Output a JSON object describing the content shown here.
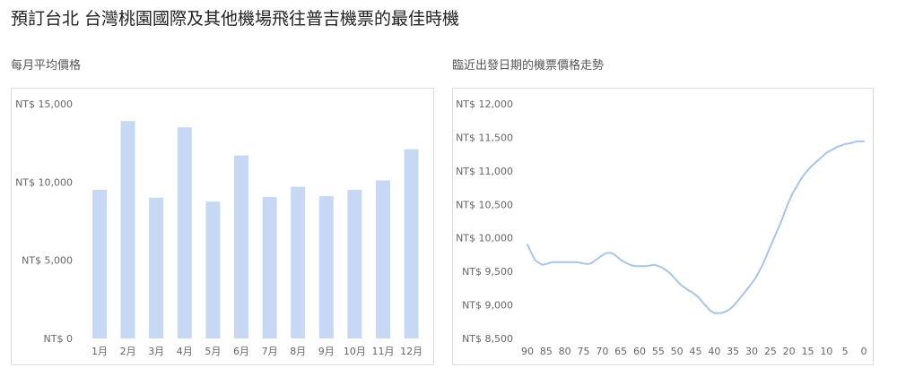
{
  "page": {
    "title": "預訂台北 台灣桃園國際及其他機場飛往普吉機票的最佳時機"
  },
  "colors": {
    "bar": "#c6d8f3",
    "line": "#a9c4ea",
    "border": "#dcdcdc"
  },
  "chart_data": [
    {
      "type": "bar",
      "title": "每月平均價格",
      "categories": [
        "1月",
        "2月",
        "3月",
        "4月",
        "5月",
        "6月",
        "7月",
        "8月",
        "9月",
        "10月",
        "11月",
        "12月"
      ],
      "values": [
        9500,
        13900,
        9000,
        13500,
        8750,
        11700,
        9050,
        9700,
        9100,
        9500,
        10100,
        12100
      ],
      "ylim": [
        0,
        15000
      ],
      "yticks": [
        0,
        5000,
        10000,
        15000
      ],
      "ytick_labels": [
        "NT$ 0",
        "NT$ 5,000",
        "NT$ 10,000",
        "NT$ 15,000"
      ],
      "grid": false,
      "xlabel": "",
      "ylabel": ""
    },
    {
      "type": "line",
      "title": "臨近出發日期的機票價格走勢",
      "x": [
        90,
        89,
        88,
        87,
        86,
        85,
        84,
        83,
        82,
        81,
        80,
        79,
        78,
        77,
        76,
        75,
        74,
        73,
        72,
        71,
        70,
        69,
        68,
        67,
        66,
        65,
        64,
        63,
        62,
        61,
        60,
        59,
        58,
        57,
        56,
        55,
        54,
        53,
        52,
        51,
        50,
        49,
        48,
        47,
        46,
        45,
        44,
        43,
        42,
        41,
        40,
        39,
        38,
        37,
        36,
        35,
        34,
        33,
        32,
        31,
        30,
        29,
        28,
        27,
        26,
        25,
        24,
        23,
        22,
        21,
        20,
        19,
        18,
        17,
        16,
        15,
        14,
        13,
        12,
        11,
        10,
        9,
        8,
        7,
        6,
        5,
        4,
        3,
        2,
        1,
        0
      ],
      "values": [
        9900,
        9780,
        9670,
        9630,
        9600,
        9610,
        9630,
        9640,
        9640,
        9640,
        9640,
        9640,
        9640,
        9640,
        9630,
        9620,
        9610,
        9620,
        9660,
        9700,
        9740,
        9770,
        9780,
        9760,
        9720,
        9670,
        9640,
        9610,
        9590,
        9580,
        9580,
        9580,
        9580,
        9590,
        9600,
        9580,
        9560,
        9520,
        9480,
        9420,
        9360,
        9300,
        9260,
        9220,
        9190,
        9150,
        9100,
        9030,
        8970,
        8910,
        8880,
        8880,
        8880,
        8900,
        8930,
        8980,
        9040,
        9110,
        9180,
        9250,
        9320,
        9400,
        9500,
        9610,
        9740,
        9870,
        10000,
        10130,
        10260,
        10410,
        10550,
        10670,
        10760,
        10860,
        10940,
        11010,
        11070,
        11120,
        11170,
        11220,
        11270,
        11300,
        11330,
        11360,
        11380,
        11400,
        11410,
        11420,
        11440,
        11440,
        11440
      ],
      "xticks": [
        90,
        85,
        80,
        75,
        70,
        65,
        60,
        55,
        50,
        45,
        40,
        35,
        30,
        25,
        20,
        15,
        10,
        5,
        0
      ],
      "ylim": [
        8500,
        12000
      ],
      "yticks": [
        8500,
        9000,
        9500,
        10000,
        10500,
        11000,
        11500,
        12000
      ],
      "ytick_labels": [
        "NT$ 8,500",
        "NT$ 9,000",
        "NT$ 9,500",
        "NT$ 10,000",
        "NT$ 10,500",
        "NT$ 11,000",
        "NT$ 11,500",
        "NT$ 12,000"
      ],
      "grid": false,
      "xlabel": "",
      "ylabel": ""
    }
  ]
}
